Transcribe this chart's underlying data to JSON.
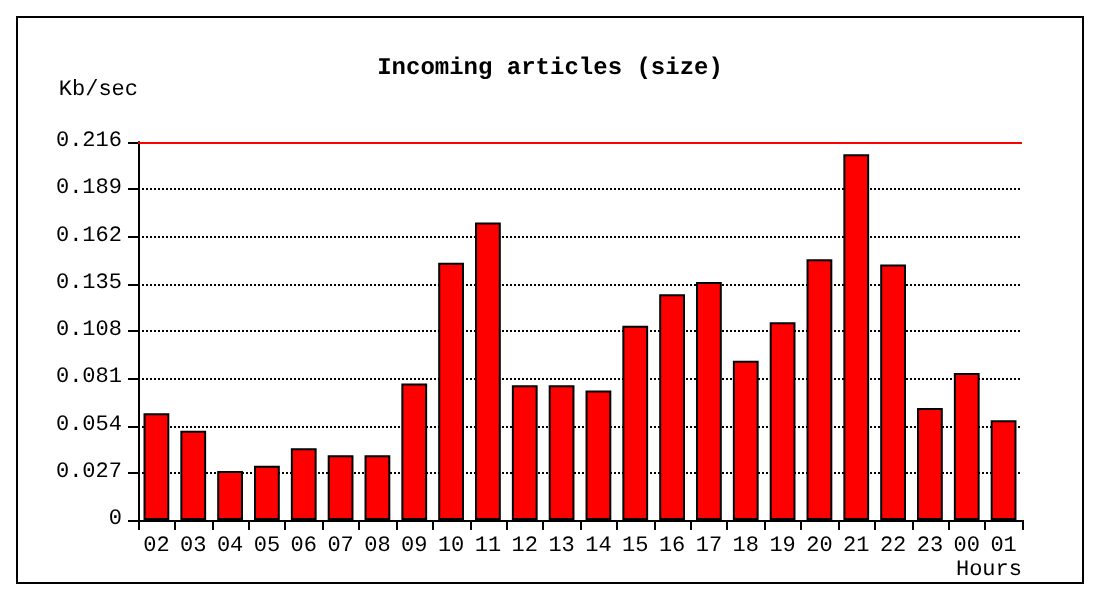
{
  "chart_data": {
    "type": "bar",
    "title": "Incoming articles (size)",
    "ylabel": "Kb/sec",
    "xlabel": "Hours",
    "categories": [
      "02",
      "03",
      "04",
      "05",
      "06",
      "07",
      "08",
      "09",
      "10",
      "11",
      "12",
      "13",
      "14",
      "15",
      "16",
      "17",
      "18",
      "19",
      "20",
      "21",
      "22",
      "23",
      "00",
      "01"
    ],
    "values": [
      0.061,
      0.051,
      0.028,
      0.031,
      0.041,
      0.037,
      0.037,
      0.078,
      0.147,
      0.17,
      0.077,
      0.077,
      0.074,
      0.111,
      0.129,
      0.136,
      0.091,
      0.113,
      0.149,
      0.209,
      0.146,
      0.064,
      0.084,
      0.057
    ],
    "color": "#ff0000",
    "ylim": [
      0,
      0.216
    ],
    "yticks": [
      0,
      0.027,
      0.054,
      0.081,
      0.108,
      0.135,
      0.162,
      0.189,
      0.216
    ],
    "grid": "y",
    "ref_lines": [
      {
        "axis": "y",
        "value": 0.216,
        "color": "#ff0000"
      }
    ]
  }
}
